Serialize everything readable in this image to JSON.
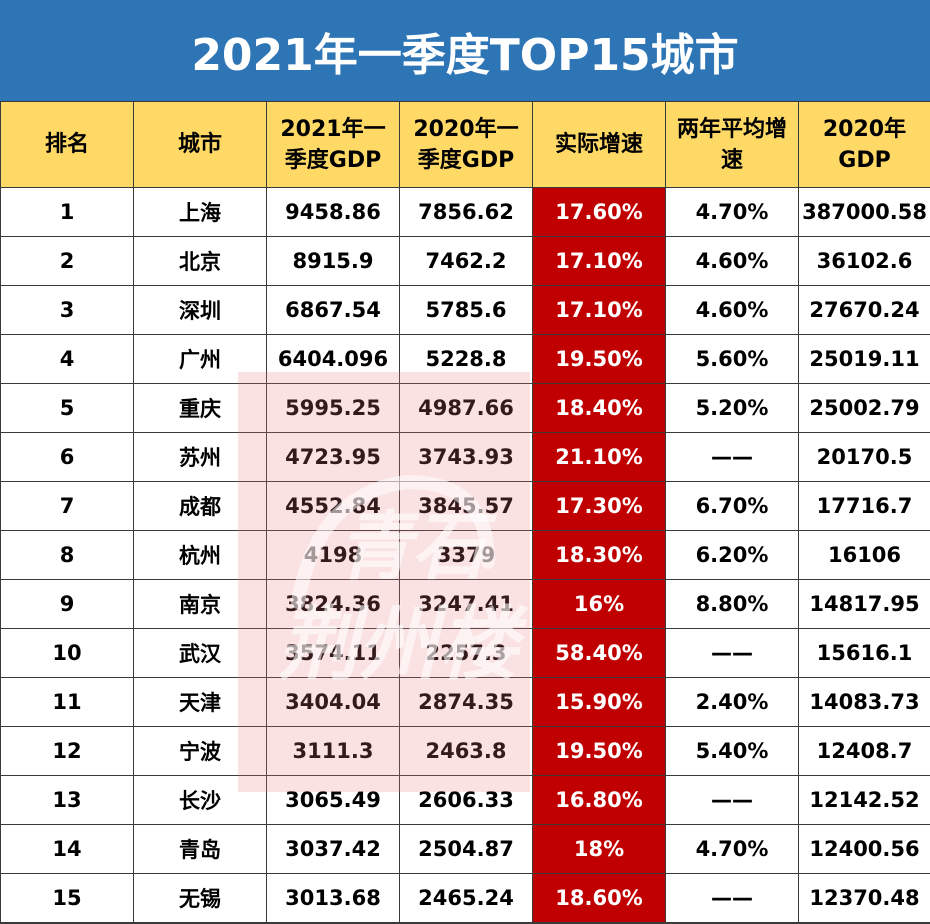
{
  "title": "2021年一季度TOP15城市",
  "columns": [
    "排名",
    "城市",
    "2021年一季度GDP",
    "2020年一季度GDP",
    "实际增速",
    "两年平均增速",
    "2020年GDP"
  ],
  "rows": [
    {
      "rank": "1",
      "city": "上海",
      "gdp_2021_q1": "9458.86",
      "gdp_2020_q1": "7856.62",
      "growth": "17.60%",
      "avg_growth": "4.70%",
      "gdp_2020": "387000.58"
    },
    {
      "rank": "2",
      "city": "北京",
      "gdp_2021_q1": "8915.9",
      "gdp_2020_q1": "7462.2",
      "growth": "17.10%",
      "avg_growth": "4.60%",
      "gdp_2020": "36102.6"
    },
    {
      "rank": "3",
      "city": "深圳",
      "gdp_2021_q1": "6867.54",
      "gdp_2020_q1": "5785.6",
      "growth": "17.10%",
      "avg_growth": "4.60%",
      "gdp_2020": "27670.24"
    },
    {
      "rank": "4",
      "city": "广州",
      "gdp_2021_q1": "6404.096",
      "gdp_2020_q1": "5228.8",
      "growth": "19.50%",
      "avg_growth": "5.60%",
      "gdp_2020": "25019.11"
    },
    {
      "rank": "5",
      "city": "重庆",
      "gdp_2021_q1": "5995.25",
      "gdp_2020_q1": "4987.66",
      "growth": "18.40%",
      "avg_growth": "5.20%",
      "gdp_2020": "25002.79"
    },
    {
      "rank": "6",
      "city": "苏州",
      "gdp_2021_q1": "4723.95",
      "gdp_2020_q1": "3743.93",
      "growth": "21.10%",
      "avg_growth": "——",
      "gdp_2020": "20170.5"
    },
    {
      "rank": "7",
      "city": "成都",
      "gdp_2021_q1": "4552.84",
      "gdp_2020_q1": "3845.57",
      "growth": "17.30%",
      "avg_growth": "6.70%",
      "gdp_2020": "17716.7"
    },
    {
      "rank": "8",
      "city": "杭州",
      "gdp_2021_q1": "4198",
      "gdp_2020_q1": "3379",
      "growth": "18.30%",
      "avg_growth": "6.20%",
      "gdp_2020": "16106"
    },
    {
      "rank": "9",
      "city": "南京",
      "gdp_2021_q1": "3824.36",
      "gdp_2020_q1": "3247.41",
      "growth": "16%",
      "avg_growth": "8.80%",
      "gdp_2020": "14817.95"
    },
    {
      "rank": "10",
      "city": "武汉",
      "gdp_2021_q1": "3574.11",
      "gdp_2020_q1": "2257.3",
      "growth": "58.40%",
      "avg_growth": "——",
      "gdp_2020": "15616.1"
    },
    {
      "rank": "11",
      "city": "天津",
      "gdp_2021_q1": "3404.04",
      "gdp_2020_q1": "2874.35",
      "growth": "15.90%",
      "avg_growth": "2.40%",
      "gdp_2020": "14083.73"
    },
    {
      "rank": "12",
      "city": "宁波",
      "gdp_2021_q1": "3111.3",
      "gdp_2020_q1": "2463.8",
      "growth": "19.50%",
      "avg_growth": "5.40%",
      "gdp_2020": "12408.7"
    },
    {
      "rank": "13",
      "city": "长沙",
      "gdp_2021_q1": "3065.49",
      "gdp_2020_q1": "2606.33",
      "growth": "16.80%",
      "avg_growth": "——",
      "gdp_2020": "12142.52"
    },
    {
      "rank": "14",
      "city": "青岛",
      "gdp_2021_q1": "3037.42",
      "gdp_2020_q1": "2504.87",
      "growth": "18%",
      "avg_growth": "4.70%",
      "gdp_2020": "12400.56"
    },
    {
      "rank": "15",
      "city": "无锡",
      "gdp_2021_q1": "3013.68",
      "gdp_2020_q1": "2465.24",
      "growth": "18.60%",
      "avg_growth": "——",
      "gdp_2020": "12370.48"
    }
  ],
  "watermark": {
    "line1": "青石",
    "line2": "荆州楼市"
  },
  "colors": {
    "title_bg": "#2e75b6",
    "header_bg": "#ffd966",
    "growth_bg": "#c00000",
    "watermark": "#e8787d"
  }
}
